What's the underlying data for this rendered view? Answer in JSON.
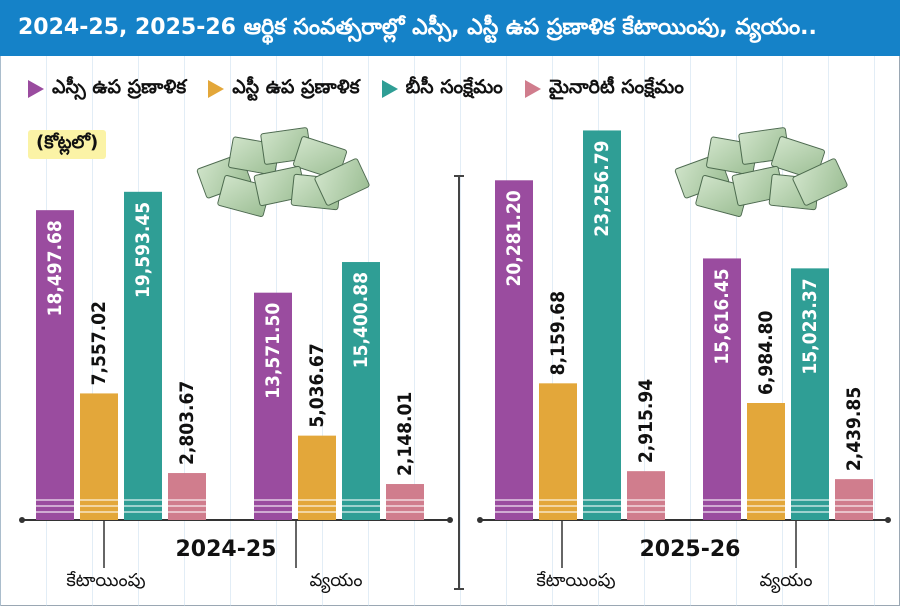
{
  "title": "2024-25, 2025-26 ఆర్థిక సంవత్సరాల్లో ఎస్సీ, ఎస్టీ ఉప ప్రణాళిక కేటాయింపు, వ్యయం..",
  "unit_label": "(కోట్లలో)",
  "legend": [
    {
      "label": "ఎస్సీ ఉప ప్రణాళిక",
      "color": "#9a4c9f"
    },
    {
      "label": "ఎస్టీ ఉప ప్రణాళిక",
      "color": "#e3a73a"
    },
    {
      "label": "బీసీ సంక్షేమం",
      "color": "#2f9e95"
    },
    {
      "label": "మైనారిటీ సంక్షేమం",
      "color": "#d07d8d"
    }
  ],
  "chart_data": {
    "type": "bar",
    "title": "2024-25, 2025-26 ఆర్థిక సంవత్సరాల్లో ఎస్సీ, ఎస్టీ ఉప ప్రణాళిక కేటాయింపు, వ్యయం..",
    "ylabel": "(కోట్లలో)",
    "ylim": [
      0,
      24000
    ],
    "groups": [
      {
        "year": "2024-25",
        "categories": [
          "కేటాయింపు",
          "వ్యయం"
        ],
        "series": [
          {
            "name": "ఎస్సీ ఉప ప్రణాళిక",
            "values": [
              18497.68,
              13571.5
            ],
            "labels": [
              "18,497.68",
              "13,571.50"
            ]
          },
          {
            "name": "ఎస్టీ ఉప ప్రణాళిక",
            "values": [
              7557.02,
              5036.67
            ],
            "labels": [
              "7,557.02",
              "5,036.67"
            ]
          },
          {
            "name": "బీసీ సంక్షేమం",
            "values": [
              19593.45,
              15400.88
            ],
            "labels": [
              "19,593.45",
              "15,400.88"
            ]
          },
          {
            "name": "మైనారిటీ సంక్షేమం",
            "values": [
              2803.67,
              2148.01
            ],
            "labels": [
              "2,803.67",
              "2,148.01"
            ]
          }
        ]
      },
      {
        "year": "2025-26",
        "categories": [
          "కేటాయింపు",
          "వ్యయం"
        ],
        "series": [
          {
            "name": "ఎస్సీ ఉప ప్రణాళిక",
            "values": [
              20281.2,
              15616.45
            ],
            "labels": [
              "20,281.20",
              "15,616.45"
            ]
          },
          {
            "name": "ఎస్టీ ఉప ప్రణాళిక",
            "values": [
              8159.68,
              6984.8
            ],
            "labels": [
              "8,159.68",
              "6,984.80"
            ]
          },
          {
            "name": "బీసీ సంక్షేమం",
            "values": [
              23256.79,
              15023.37
            ],
            "labels": [
              "23,256.79",
              "15,023.37"
            ]
          },
          {
            "name": "మైనారిటీ సంక్షేమం",
            "values": [
              2915.94,
              2439.85
            ],
            "labels": [
              "2,915.94",
              "2,439.85"
            ]
          }
        ]
      }
    ]
  }
}
